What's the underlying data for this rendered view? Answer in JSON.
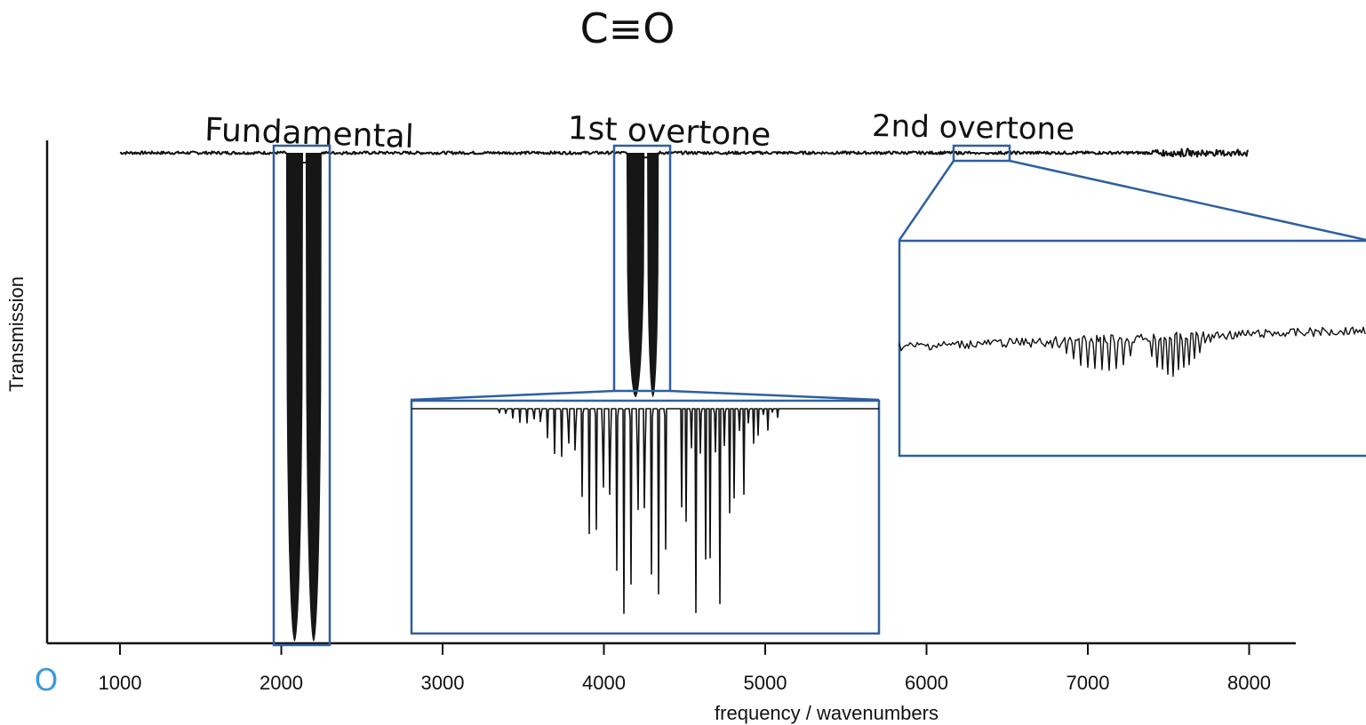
{
  "title": "C≡O",
  "colors": {
    "line": "#111111",
    "box": "#2e5f9e",
    "zero_label": "#3a9ad9"
  },
  "chart_data": {
    "type": "line",
    "title": "C≡O",
    "xlabel": "frequency / wavenumbers",
    "ylabel": "Transmission",
    "xlim": [
      550,
      8300
    ],
    "ylim": [
      0,
      1
    ],
    "x_ticks": [
      "1000",
      "2000",
      "3000",
      "4000",
      "5000",
      "6000",
      "7000",
      "8000"
    ],
    "x_tick_values": [
      1000,
      2000,
      3000,
      4000,
      5000,
      6000,
      7000,
      8000
    ],
    "origin_label": "O",
    "grid": false,
    "series": [
      {
        "bands": [
          {
            "center": 2143,
            "range": [
              2030,
              2250
            ],
            "min_transmission": 0.0
          },
          {
            "center": 4260,
            "range": [
              4140,
              4340
            ],
            "min_transmission": 0.5
          },
          {
            "center": 6350,
            "range": [
              6280,
              6420
            ],
            "min_transmission": 0.99
          }
        ]
      }
    ],
    "annotations": [
      {
        "text": "Fundamental",
        "range": [
          1950,
          2300
        ]
      },
      {
        "text": "1st overtone",
        "range": [
          4070,
          4420
        ]
      },
      {
        "text": "2nd overtone",
        "range": [
          6180,
          6520
        ]
      }
    ],
    "insets": [
      {
        "zoom_of": "1st overtone",
        "range": [
          4070,
          4420
        ]
      },
      {
        "zoom_of": "2nd overtone",
        "range": [
          6180,
          6520
        ]
      }
    ]
  }
}
